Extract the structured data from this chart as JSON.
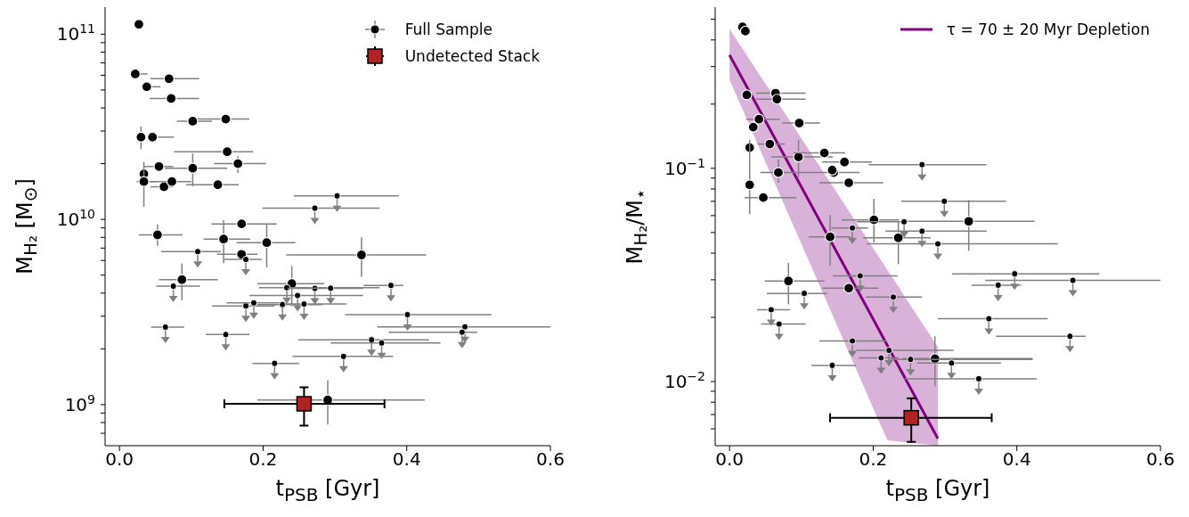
{
  "chart_data": [
    {
      "type": "scatter",
      "xlabel": "t$_{PSB}$ [Gyr]",
      "ylabel": "M$_{H₂}$ [M$_{⊙}$]",
      "log": "y",
      "legend": "top right",
      "xlim": [
        -0.02,
        0.6
      ],
      "xticks": [
        {
          "value": 0,
          "label": "0.0"
        },
        0.2,
        0.4,
        0.6
      ],
      "ylim": [
        600000000.0,
        140000000000.0
      ],
      "yticks": [
        {
          "value": 700000000.0,
          "label": null
        },
        {
          "value": 800000000.0,
          "label": null
        },
        {
          "value": 900000000.0,
          "label": null
        },
        {
          "value": 1000000000.0,
          "label": "10$^{9}$"
        },
        {
          "value": 2000000000.0,
          "label": null
        },
        {
          "value": 3000000000.0,
          "label": null
        },
        {
          "value": 4000000000.0,
          "label": null
        },
        {
          "value": 5000000000.0,
          "label": null
        },
        {
          "value": 6000000000.0,
          "label": null
        },
        {
          "value": 7000000000.0,
          "label": null
        },
        {
          "value": 8000000000.0,
          "label": null
        },
        {
          "value": 9000000000.0,
          "label": null
        },
        {
          "value": 10000000000.0,
          "label": "10$^{10}$"
        },
        {
          "value": 20000000000.0,
          "label": null
        },
        {
          "value": 30000000000.0,
          "label": null
        },
        {
          "value": 40000000000.0,
          "label": null
        },
        {
          "value": 50000000000.0,
          "label": null
        },
        {
          "value": 60000000000.0,
          "label": null
        },
        {
          "value": 70000000000.0,
          "label": null
        },
        {
          "value": 80000000000.0,
          "label": null
        },
        {
          "value": 90000000000.0,
          "label": null
        },
        {
          "value": 100000000000.0,
          "label": "10$^{11}$"
        }
      ],
      "series": [
        {
          "name": "Full Sample",
          "marker": "circle",
          "color": "#000000",
          "x": [
            0.027,
            0.022,
            0.069,
            0.038,
            0.072,
            0.102,
            0.148,
            0.03,
            0.046,
            0.15,
            0.165,
            0.055,
            0.102,
            0.034,
            0.034,
            0.062,
            0.073,
            0.137,
            0.17,
            0.053,
            0.145,
            0.205,
            0.337,
            0.17,
            0.087,
            0.24,
            0.29
          ],
          "values": [
            113000000000.0,
            61000000000.0,
            57500000000.0,
            52000000000.0,
            45000000000.0,
            33900000000.0,
            34800000000.0,
            27800000000.0,
            27800000000.0,
            23200000000.0,
            20000000000.0,
            19300000000.0,
            18900000000.0,
            17600000000.0,
            16000000000.0,
            15000000000.0,
            16000000000.0,
            15400000000.0,
            9460000000.0,
            8250000000.0,
            7830000000.0,
            7490000000.0,
            6430000000.0,
            6480000000.0,
            4730000000.0,
            4500000000.0,
            1060000000.0
          ],
          "xerrors": [
            null,
            [
              0.02,
              0.039
            ],
            [
              0.043,
              0.111
            ],
            [
              0.03,
              0.057
            ],
            [
              0.042,
              0.111
            ],
            [
              0.08,
              0.129
            ],
            [
              0.109,
              0.181
            ],
            null,
            [
              0.04,
              0.076
            ],
            [
              0.076,
              0.186
            ],
            [
              0.132,
              0.204
            ],
            [
              0.034,
              0.075
            ],
            [
              0.063,
              0.15
            ],
            null,
            [
              0.024,
              0.05
            ],
            [
              0.043,
              0.075
            ],
            [
              0.043,
              0.1
            ],
            [
              0.093,
              0.166
            ],
            [
              0.128,
              0.219
            ],
            [
              0.027,
              0.088
            ],
            [
              0.117,
              0.182
            ],
            [
              0.163,
              0.245
            ],
            [
              0.232,
              0.427
            ],
            [
              0.136,
              0.192
            ],
            [
              0.055,
              0.137
            ],
            [
              0.192,
              0.285
            ],
            [
              0.192,
              0.425
            ]
          ],
          "errors": [
            null,
            null,
            null,
            null,
            null,
            null,
            null,
            [
              24000000000.0,
              31800000000.0
            ],
            null,
            null,
            [
              17800000000.0,
              22000000000.0
            ],
            null,
            [
              15100000000.0,
              22700000000.0
            ],
            null,
            [
              11700000000.0,
              20400000000.0
            ],
            null,
            null,
            null,
            null,
            [
              7200000000.0,
              9400000000.0
            ],
            [
              5800000000.0,
              9900000000.0
            ],
            [
              5500000000.0,
              9400000000.0
            ],
            [
              4900000000.0,
              8000000000.0
            ],
            null,
            [
              3660000000.0,
              5780000000.0
            ],
            [
              3400000000.0,
              5600000000.0
            ],
            [
              780000000.0,
              1350000000.0
            ]
          ]
        },
        {
          "marker": "circle",
          "color": "#000000",
          "x": [
            0.303,
            0.272,
            0.109,
            0.176,
            0.075,
            0.233,
            0.272,
            0.294,
            0.378,
            0.248,
            0.176,
            0.187,
            0.227,
            0.257,
            0.401,
            0.481,
            0.477,
            0.064,
            0.148,
            0.351,
            0.365,
            0.312,
            0.216
          ],
          "values": [
            13400000000.0,
            11500000000.0,
            6700000000.0,
            6080000000.0,
            4360000000.0,
            4280000000.0,
            4240000000.0,
            4250000000.0,
            4400000000.0,
            3880000000.0,
            3410000000.0,
            3540000000.0,
            3470000000.0,
            3490000000.0,
            3060000000.0,
            2630000000.0,
            2460000000.0,
            2620000000.0,
            2390000000.0,
            2240000000.0,
            2150000000.0,
            1820000000.0,
            1670000000.0
          ],
          "xerrors": [
            [
              0.243,
              0.389
            ],
            [
              0.199,
              0.362
            ],
            [
              0.058,
              0.141
            ],
            [
              0.146,
              0.198
            ],
            [
              0.051,
              0.112
            ],
            [
              0.194,
              0.362
            ],
            [
              0.234,
              0.339
            ],
            [
              0.266,
              0.339
            ],
            [
              0.34,
              0.395
            ],
            [
              0.181,
              0.339
            ],
            [
              0.129,
              0.216
            ],
            [
              0.149,
              0.227
            ],
            [
              0.192,
              0.283
            ],
            [
              0.229,
              0.316
            ],
            [
              0.314,
              0.518
            ],
            [
              0.359,
              0.6
            ],
            [
              0.375,
              0.498
            ],
            [
              0.044,
              0.09
            ],
            [
              0.12,
              0.181
            ],
            [
              0.249,
              0.431
            ],
            [
              0.294,
              0.447
            ],
            [
              0.241,
              0.381
            ],
            [
              0.185,
              0.25
            ]
          ]
        },
        {
          "name": "Undetected Stack",
          "marker": "square",
          "color": "#b22222",
          "x": [
            0.257
          ],
          "values": [
            1010000000.0
          ],
          "xerrors": [
            [
              0.146,
              0.369
            ]
          ],
          "errors": [
            [
              770000000.0,
              1240000000.0
            ]
          ]
        }
      ]
    },
    {
      "type": "scatter",
      "xlabel": "t$_{PSB}$ [Gyr]",
      "ylabel": "M$_{H₂}$/M$_{⋆}$",
      "log": "y",
      "legend": "top right",
      "xlim": [
        -0.02,
        0.6
      ],
      "xticks": [
        {
          "value": 0,
          "label": "0.0"
        },
        0.2,
        0.4,
        0.6
      ],
      "ylim": [
        0.005,
        0.57
      ],
      "yticks": [
        {
          "value": 0.006,
          "label": null
        },
        {
          "value": 0.007,
          "label": null
        },
        {
          "value": 0.008,
          "label": null
        },
        {
          "value": 0.009,
          "label": null
        },
        {
          "value": 0.01,
          "label": "10$^{−2}$"
        },
        {
          "value": 0.02,
          "label": null
        },
        {
          "value": 0.03,
          "label": null
        },
        {
          "value": 0.04,
          "label": null
        },
        {
          "value": 0.05,
          "label": null
        },
        {
          "value": 0.06,
          "label": null
        },
        {
          "value": 0.07,
          "label": null
        },
        {
          "value": 0.08,
          "label": null
        },
        {
          "value": 0.09,
          "label": null
        },
        {
          "value": 0.1,
          "label": "10$^{−1}$"
        },
        {
          "value": 0.2,
          "label": null
        },
        {
          "value": 0.3,
          "label": null
        },
        {
          "value": 0.4,
          "label": null
        },
        {
          "value": 0.5,
          "label": null
        }
      ],
      "series": [
        {
          "name": "τ = 70 ± 20 Myr Depletion",
          "type": "line",
          "color": "#800080",
          "x": [
            0,
            0.1,
            0.2,
            0.22,
            0.29
          ],
          "values": [
            0.34,
            0.0817,
            0.0196,
            0.0147,
            0.0054
          ],
          "lower": [
            0.26,
            0.0442,
            0.0075,
            0.0053,
            0.005
          ],
          "upper": [
            0.45,
            0.138,
            0.0422,
            0.0333,
            0.0145
          ]
        },
        {
          "marker": "circle",
          "color": "#000000",
          "x": [
            0.018,
            0.022,
            0.024,
            0.064,
            0.066,
            0.041,
            0.033,
            0.097,
            0.028,
            0.056,
            0.096,
            0.132,
            0.16,
            0.145,
            0.143,
            0.068,
            0.166,
            0.028,
            0.047,
            0.201,
            0.333,
            0.14,
            0.235,
            0.082,
            0.166,
            0.286
          ],
          "values": [
            0.46,
            0.44,
            0.221,
            0.225,
            0.211,
            0.17,
            0.156,
            0.163,
            0.125,
            0.13,
            0.113,
            0.118,
            0.107,
            0.0955,
            0.098,
            0.0955,
            0.0855,
            0.0836,
            0.0729,
            0.0573,
            0.0564,
            0.0477,
            0.0472,
            0.0296,
            0.0274,
            0.0128
          ],
          "xerrors": [
            null,
            null,
            null,
            [
              0.037,
              0.106
            ],
            [
              0.037,
              0.106
            ],
            [
              0.023,
              0.07
            ],
            null,
            [
              0.073,
              0.126
            ],
            null,
            [
              0.039,
              0.077
            ],
            [
              0.058,
              0.144
            ],
            [
              0.089,
              0.161
            ],
            [
              0.129,
              0.198
            ],
            [
              0.093,
              0.181
            ],
            null,
            [
              0.043,
              0.093
            ],
            [
              0.125,
              0.214
            ],
            null,
            [
              0.021,
              0.093
            ],
            [
              0.156,
              0.236
            ],
            [
              0.238,
              0.425
            ],
            [
              0.11,
              0.169
            ],
            [
              0.186,
              0.28
            ],
            [
              0.049,
              0.132
            ],
            [
              0.129,
              0.207
            ],
            [
              0.24,
              0.422
            ]
          ],
          "errors": [
            null,
            null,
            null,
            null,
            null,
            null,
            null,
            null,
            null,
            null,
            [
              0.091,
              0.136
            ],
            null,
            null,
            null,
            null,
            [
              0.0855,
              0.11
            ],
            null,
            [
              0.061,
              0.136
            ],
            null,
            [
              0.045,
              0.072
            ],
            [
              0.041,
              0.071
            ],
            [
              0.0349,
              0.0603
            ],
            [
              0.0355,
              0.0563
            ],
            [
              0.023,
              0.036
            ],
            null,
            [
              0.0095,
              0.0163
            ]
          ]
        },
        {
          "marker": "circle",
          "color": "#000000",
          "x": [
            0.268,
            0.299,
            0.243,
            0.171,
            0.268,
            0.29,
            0.397,
            0.478,
            0.374,
            0.182,
            0.104,
            0.228,
            0.058,
            0.069,
            0.361,
            0.474,
            0.171,
            0.222,
            0.211,
            0.252,
            0.309,
            0.347,
            0.143
          ],
          "values": [
            0.104,
            0.07,
            0.0561,
            0.0525,
            0.0507,
            0.0442,
            0.032,
            0.0298,
            0.0283,
            0.0313,
            0.0259,
            0.0249,
            0.0217,
            0.0186,
            0.0197,
            0.0163,
            0.0155,
            0.014,
            0.0129,
            0.0127,
            0.0122,
            0.0103,
            0.0119
          ],
          "xerrors": [
            [
              0.194,
              0.358
            ],
            [
              0.239,
              0.385
            ],
            [
              0.177,
              0.245
            ],
            [
              0.142,
              0.193
            ],
            [
              0.217,
              0.358
            ],
            [
              0.191,
              0.457
            ],
            [
              0.31,
              0.515
            ],
            [
              0.356,
              0.6
            ],
            [
              0.337,
              0.406
            ],
            [
              0.144,
              0.234
            ],
            [
              0.052,
              0.136
            ],
            [
              0.19,
              0.268
            ],
            [
              0.038,
              0.084
            ],
            [
              0.044,
              0.106
            ],
            [
              0.29,
              0.443
            ],
            [
              0.371,
              0.496
            ],
            [
              0.125,
              0.219
            ],
            [
              0.177,
              0.312
            ],
            [
              0.18,
              0.236
            ],
            [
              0.224,
              0.422
            ],
            [
              0.261,
              0.378
            ],
            [
              0.244,
              0.428
            ],
            [
              0.114,
              0.176
            ]
          ]
        },
        {
          "marker": "square",
          "color": "#b22222",
          "x": [
            0.253
          ],
          "values": [
            0.00676
          ],
          "xerrors": [
            [
              0.14,
              0.365
            ]
          ],
          "errors": [
            [
              0.00521,
              0.00834
            ]
          ]
        }
      ]
    }
  ]
}
